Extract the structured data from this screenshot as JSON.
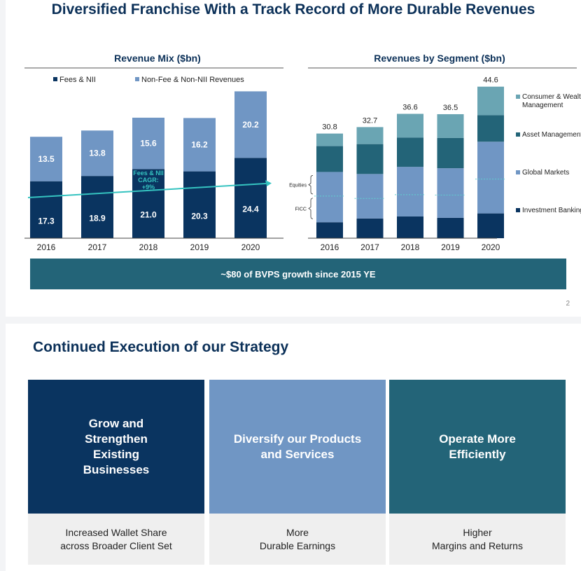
{
  "slide1": {
    "title": "Diversified Franchise With a Track Record of More Durable Revenues",
    "page_number": "2",
    "banner": "~$80 of BVPS growth since 2015 YE"
  },
  "colors": {
    "navy": "#0a3460",
    "light_blue": "#7096c4",
    "teal": "#236478",
    "teal_light": "#6aa5b3",
    "arrow": "#35c3c0"
  },
  "chart_data": [
    {
      "type": "bar",
      "stacked": true,
      "title": "Revenue Mix ($bn)",
      "categories": [
        "2016",
        "2017",
        "2018",
        "2019",
        "2020"
      ],
      "series": [
        {
          "name": "Fees & NII",
          "values": [
            17.3,
            18.9,
            21.0,
            20.3,
            24.4
          ],
          "labels": [
            "17.3",
            "18.9",
            "21.0",
            "20.3",
            "24.4"
          ],
          "color": "#0a3460"
        },
        {
          "name": "Non-Fee & Non-NII Revenues",
          "values": [
            13.5,
            13.8,
            15.6,
            16.2,
            20.2
          ],
          "labels": [
            "13.5",
            "13.8",
            "15.6",
            "16.2",
            "20.2"
          ],
          "color": "#7096c4"
        }
      ],
      "legend_position": "top",
      "annotation": {
        "lines": [
          "Fees & NII",
          "CAGR:",
          "+9%"
        ]
      }
    },
    {
      "type": "bar",
      "stacked": true,
      "title": "Revenues by Segment ($bn)",
      "categories": [
        "2016",
        "2017",
        "2018",
        "2019",
        "2020"
      ],
      "totals": [
        "30.8",
        "32.7",
        "36.6",
        "36.5",
        "44.6"
      ],
      "series": [
        {
          "name": "Investment Banking",
          "values": [
            4.7,
            5.8,
            6.4,
            6.0,
            7.3
          ],
          "color": "#0a3460"
        },
        {
          "name": "Global Markets",
          "values": [
            14.8,
            13.1,
            14.6,
            14.6,
            21.1
          ],
          "color": "#7096c4"
        },
        {
          "name": "Asset Management",
          "values": [
            7.6,
            8.8,
            8.6,
            8.9,
            7.8
          ],
          "color": "#236478"
        },
        {
          "name": "Consumer & Wealth Management",
          "values": [
            3.7,
            5.0,
            7.0,
            7.0,
            8.4
          ],
          "color": "#6aa5b3"
        }
      ],
      "global_markets_split": {
        "ficc": [
          7.7,
          5.9,
          6.4,
          6.7,
          10.1
        ]
      },
      "bracket_labels": [
        "Equities",
        "FICC"
      ],
      "legend_position": "right"
    }
  ],
  "slide2": {
    "title": "Continued Execution of our Strategy",
    "cards": [
      {
        "heading": "Grow and\nStrengthen\nExisting\nBusinesses",
        "subtext": "Increased Wallet Share\nacross Broader Client Set",
        "color": "#0a3460"
      },
      {
        "heading": "Diversify our Products\nand Services",
        "subtext": "More\nDurable Earnings",
        "color": "#7096c4"
      },
      {
        "heading": "Operate More\nEfficiently",
        "subtext": "Higher\nMargins and Returns",
        "color": "#236478"
      }
    ]
  }
}
